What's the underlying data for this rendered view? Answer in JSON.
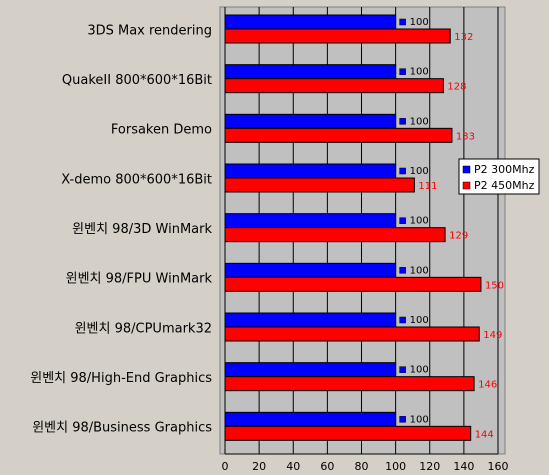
{
  "chart_data": {
    "type": "bar",
    "orientation": "horizontal",
    "categories": [
      "3DS Max rendering",
      "QuakeII 800*600*16Bit",
      "Forsaken Demo",
      "X-demo 800*600*16Bit",
      "윈벤치 98/3D WinMark",
      "윈벤치 98/FPU WinMark",
      "윈벤치 98/CPUmark32",
      "윈벤치 98/High-End Graphics",
      "윈벤치 98/Business Graphics"
    ],
    "series": [
      {
        "name": "P2 300Mhz",
        "values": [
          100,
          100,
          100,
          100,
          100,
          100,
          100,
          100,
          100
        ],
        "color": "#0000ff",
        "label_color": "#000000"
      },
      {
        "name": "P2 450Mhz",
        "values": [
          132,
          128,
          133,
          111,
          129,
          150,
          149,
          146,
          144
        ],
        "color": "#ff0000",
        "label_color": "#ff0000"
      }
    ],
    "xlim": [
      0,
      160
    ],
    "xticks": [
      "0",
      "20",
      "40",
      "60",
      "80",
      "100",
      "120",
      "140",
      "160"
    ],
    "grid": true,
    "legend_position": "right",
    "colors": {
      "plot_background": "#c0c0c0",
      "outer_background": "#d4d0c8",
      "gridline": "#000000"
    }
  }
}
